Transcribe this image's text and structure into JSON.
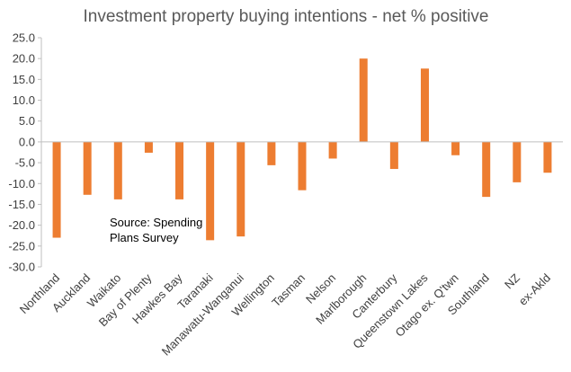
{
  "chart_data": {
    "type": "bar",
    "title": "Investment property buying intentions - net % positive",
    "xlabel": "",
    "ylabel": "",
    "ylim": [
      -30,
      25
    ],
    "yticks": [
      "25.0",
      "20.0",
      "15.0",
      "10.0",
      "5.0",
      "0.0",
      "-5.0",
      "-10.0",
      "-15.0",
      "-20.0",
      "-25.0",
      "-30.0"
    ],
    "grid": false,
    "legend": "none",
    "bar_color": "#ED7D31",
    "categories": [
      "Northland",
      "Auckland",
      "Waikato",
      "Bay of Plenty",
      "Hawkes Bay",
      "Taranaki",
      "Manawatu-Wanganui",
      "Wellington",
      "Tasman",
      "Nelson",
      "Marlborough",
      "Canterbury",
      "Queenstown Lakes",
      "Otago ex. Q'twn",
      "Southland",
      "NZ",
      "ex-Akld"
    ],
    "values": [
      -23.0,
      -12.7,
      -13.8,
      -2.6,
      -13.8,
      -23.6,
      -22.7,
      -5.6,
      -11.6,
      -4.0,
      20.0,
      -6.5,
      17.6,
      -3.2,
      -13.2,
      -9.7,
      -7.4
    ],
    "annotation": [
      "Source: Spending",
      "Plans Survey"
    ]
  }
}
